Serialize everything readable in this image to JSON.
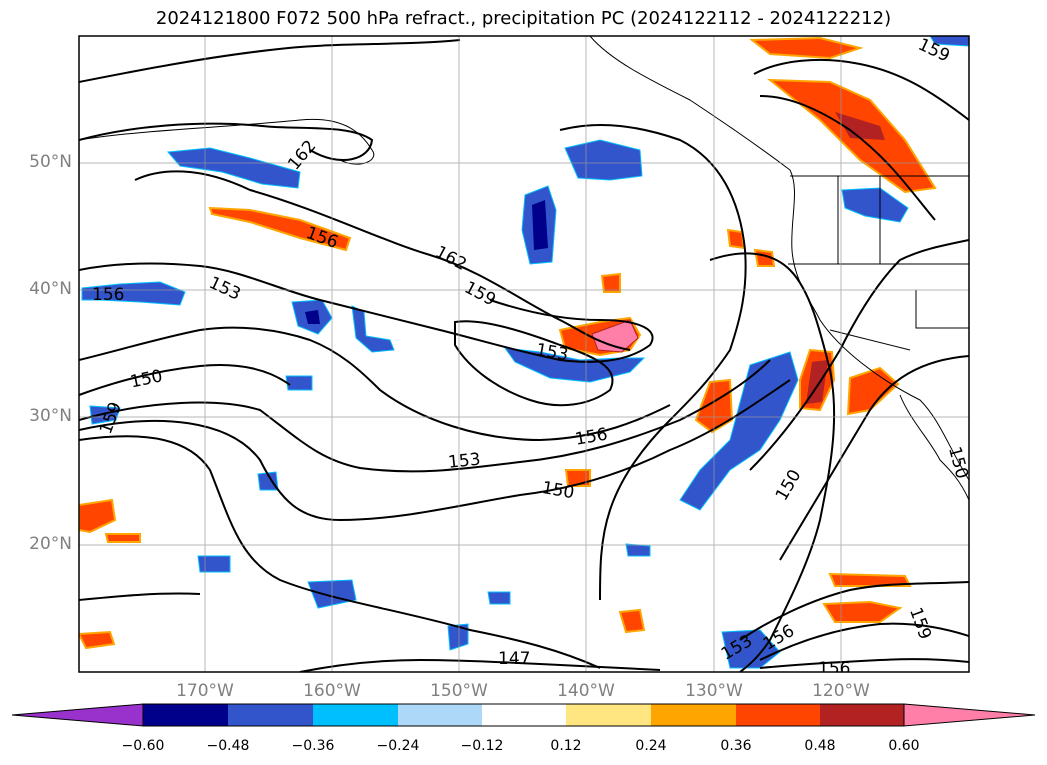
{
  "title": "2024121800 F072 500 hPa refract., precipitation PC (2024122112 - 2024122212)",
  "lat_labels": [
    "50°N",
    "40°N",
    "30°N",
    "20°N"
  ],
  "lon_labels": [
    "170°W",
    "160°W",
    "150°W",
    "140°W",
    "130°W",
    "120°W"
  ],
  "contour_labels": [
    "162",
    "156",
    "153",
    "150",
    "159",
    "162",
    "159",
    "153",
    "156",
    "153",
    "150",
    "150",
    "159",
    "153",
    "156",
    "147",
    "156",
    "159",
    "150"
  ],
  "colorbar": {
    "colors": [
      "#9932cc",
      "#00008b",
      "#3355cc",
      "#00bfff",
      "#add8f8",
      "#ffffff",
      "#ffe680",
      "#ffa500",
      "#ff4500",
      "#b22222",
      "#ff7fa8"
    ],
    "ticks": [
      "−0.60",
      "−0.48",
      "−0.36",
      "−0.24",
      "−0.12",
      "0.12",
      "0.24",
      "0.36",
      "0.48",
      "0.60"
    ]
  }
}
